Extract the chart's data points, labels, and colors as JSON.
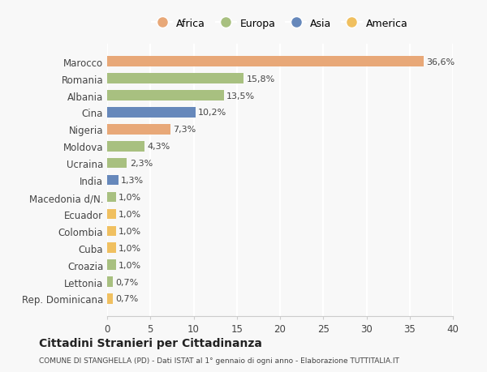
{
  "categories": [
    "Rep. Dominicana",
    "Lettonia",
    "Croazia",
    "Cuba",
    "Colombia",
    "Ecuador",
    "Macedonia d/N.",
    "India",
    "Ucraina",
    "Moldova",
    "Nigeria",
    "Cina",
    "Albania",
    "Romania",
    "Marocco"
  ],
  "values": [
    0.7,
    0.7,
    1.0,
    1.0,
    1.0,
    1.0,
    1.0,
    1.3,
    2.3,
    4.3,
    7.3,
    10.2,
    13.5,
    15.8,
    36.6
  ],
  "labels": [
    "0,7%",
    "0,7%",
    "1,0%",
    "1,0%",
    "1,0%",
    "1,0%",
    "1,0%",
    "1,3%",
    "2,3%",
    "4,3%",
    "7,3%",
    "10,2%",
    "13,5%",
    "15,8%",
    "36,6%"
  ],
  "colors": [
    "#f0c060",
    "#a8c080",
    "#a8c080",
    "#f0c060",
    "#f0c060",
    "#f0c060",
    "#a8c080",
    "#6688bb",
    "#a8c080",
    "#a8c080",
    "#e8a878",
    "#6688bb",
    "#a8c080",
    "#a8c080",
    "#e8a878"
  ],
  "legend": [
    {
      "label": "Africa",
      "color": "#e8a878"
    },
    {
      "label": "Europa",
      "color": "#a8c080"
    },
    {
      "label": "Asia",
      "color": "#6688bb"
    },
    {
      "label": "America",
      "color": "#f0c060"
    }
  ],
  "title": "Cittadini Stranieri per Cittadinanza",
  "subtitle": "COMUNE DI STANGHELLA (PD) - Dati ISTAT al 1° gennaio di ogni anno - Elaborazione TUTTITALIA.IT",
  "xlim": [
    0,
    40
  ],
  "xticks": [
    0,
    5,
    10,
    15,
    20,
    25,
    30,
    35,
    40
  ],
  "background_color": "#f8f8f8",
  "grid_color": "#ffffff"
}
